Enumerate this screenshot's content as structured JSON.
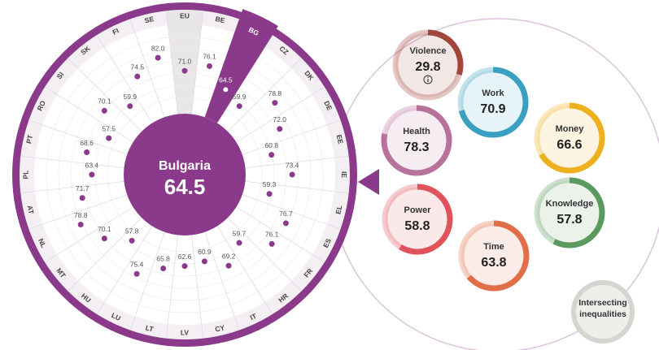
{
  "chart_data": {
    "type": "radial_dot",
    "categories": [
      "EU",
      "BE",
      "BG",
      "CZ",
      "DK",
      "DE",
      "EE",
      "IE",
      "EL",
      "ES",
      "FR",
      "HR",
      "IT",
      "CY",
      "LV",
      "LT",
      "LU",
      "HU",
      "MT",
      "NL",
      "AT",
      "PL",
      "PT",
      "RO",
      "SI",
      "SK",
      "FI",
      "SE"
    ],
    "values": [
      71.0,
      76.1,
      64.5,
      59.9,
      78.8,
      72.0,
      60.8,
      73.4,
      59.3,
      76.7,
      76.1,
      59.7,
      69.2,
      60.9,
      62.6,
      65.8,
      75.4,
      57.8,
      70.1,
      78.8,
      71.7,
      63.4,
      68.6,
      57.5,
      70.1,
      59.9,
      74.5,
      82.0
    ],
    "value_labels": [
      "71.0",
      "76.1",
      "64.5",
      "59.9",
      "78.8",
      "72.0",
      "60.8",
      "73.4",
      "59.3",
      "76.7",
      "76.1",
      "59.7",
      "69.2",
      "60.9",
      "62.6",
      "65.8",
      "75.4",
      "57.8",
      "70.1",
      "78.8",
      "71.7",
      "63.4",
      "68.6",
      "57.5",
      "70.1",
      "59.9",
      "74.5",
      "82.0"
    ],
    "rlim": [
      0,
      100
    ],
    "color": "#8b3a8b",
    "highlight": "BG",
    "reference": "EU",
    "center_label": "Bulgaria"
  },
  "domains": [
    {
      "name": "Violence",
      "value": 29.8,
      "color": "#a2453d"
    },
    {
      "name": "Work",
      "value": 70.9,
      "color": "#3a9fc0"
    },
    {
      "name": "Health",
      "value": 78.3,
      "color": "#b8719b"
    },
    {
      "name": "Money",
      "value": 66.6,
      "color": "#efb020"
    },
    {
      "name": "Power",
      "value": 58.8,
      "color": "#e0525c"
    },
    {
      "name": "Knowledge",
      "value": 57.8,
      "color": "#5a9a5e"
    },
    {
      "name": "Time",
      "value": 63.8,
      "color": "#e06e48"
    }
  ],
  "intersecting": "Intersecting inequalities"
}
